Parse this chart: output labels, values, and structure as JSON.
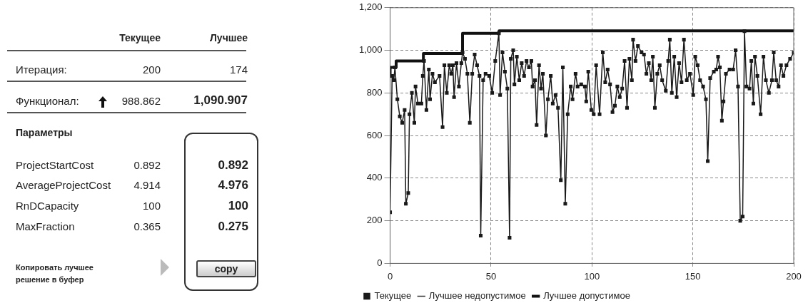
{
  "chart_data": [
    {
      "type": "other",
      "annotations": [
        "Текущее",
        "Лучшее",
        "Итерация:",
        "200",
        "174",
        "Функционал:",
        "988.862",
        "1,090.907",
        "Параметры",
        "ProjectStartCost",
        "0.892",
        "0.892",
        "AverageProjectCost",
        "4.914",
        "4.976",
        "RnDCapacity",
        "100",
        "100",
        "MaxFraction",
        "0.365",
        "0.275",
        "Копировать лучшее решение в буфер",
        "copy"
      ]
    },
    {
      "type": "line",
      "xlim": [
        0,
        200
      ],
      "xticks": [
        0,
        50,
        100,
        150,
        200
      ],
      "ylim": [
        0,
        1200
      ],
      "yticks": [
        0,
        200,
        400,
        600,
        800,
        {
          "value": 1000,
          "label": "1,000"
        },
        {
          "value": 1200,
          "label": "1,200"
        }
      ],
      "grid": true,
      "legend": "bottom",
      "series": [
        {
          "name": "Текущее",
          "type": "line",
          "color": "#1a1a1a",
          "marker": "square",
          "x": [
            0,
            1,
            1.8,
            2.4,
            3.6,
            4.8,
            6,
            7.2,
            7.8,
            9,
            9.6,
            10.8,
            12,
            12.6,
            13.8,
            15.5,
            16.2,
            16.8,
            18,
            19.2,
            19.8,
            21,
            22.2,
            24.5,
            26,
            26.9,
            28.1,
            29.3,
            30.3,
            31.1,
            31.7,
            32.9,
            34.1,
            35.3,
            35.9,
            37.1,
            38.3,
            39.5,
            40.7,
            41.9,
            43.1,
            44.3,
            44.9,
            46.1,
            47.3,
            49.1,
            50.6,
            52.1,
            53.9,
            54.5,
            55.7,
            56.9,
            58.1,
            59.2,
            59.8,
            61,
            61.6,
            62.8,
            64,
            65.2,
            66.4,
            67.6,
            68.8,
            70,
            70.6,
            71.8,
            72.6,
            73.8,
            74.8,
            75.7,
            77.2,
            78.2,
            79.6,
            80.6,
            82,
            83.2,
            84.6,
            85.6,
            86.8,
            88,
            89.5,
            90.4,
            91.9,
            92.9,
            94.7,
            96.5,
            97.2,
            98.2,
            99.7,
            100.9,
            102.1,
            103.8,
            105.4,
            106.6,
            107.8,
            109,
            110.2,
            111.4,
            112.6,
            113.8,
            115,
            116.2,
            117.4,
            118.6,
            119.8,
            120.4,
            121.6,
            122.8,
            124.6,
            125.8,
            127,
            128.2,
            129.4,
            130.2,
            131.2,
            132.4,
            133.6,
            134.8,
            136.6,
            137.8,
            138.6,
            139.6,
            140.8,
            142,
            143.2,
            144.4,
            145.6,
            147,
            148.6,
            150.2,
            151.2,
            152.4,
            153.6,
            155.1,
            156.5,
            157.4,
            158.6,
            160.4,
            161.6,
            162.5,
            163.4,
            164.4,
            165.2,
            166.4,
            168.2,
            170,
            171.2,
            172.4,
            173.5,
            174.7,
            175.6,
            176.6,
            178.1,
            179,
            180,
            180.8,
            182,
            183.6,
            185,
            186.2,
            187.7,
            189.2,
            190.1,
            191.3,
            192.5,
            193.7,
            194.9,
            196.4,
            198.2,
            200
          ],
          "values": [
            240,
            880,
            860,
            920,
            770,
            690,
            660,
            720,
            280,
            330,
            700,
            800,
            660,
            830,
            750,
            750,
            880,
            950,
            720,
            910,
            770,
            890,
            850,
            880,
            640,
            930,
            800,
            930,
            890,
            930,
            780,
            940,
            830,
            940,
            990,
            960,
            890,
            660,
            890,
            980,
            930,
            880,
            130,
            860,
            890,
            880,
            800,
            950,
            1080,
            790,
            990,
            900,
            820,
            120,
            960,
            1000,
            840,
            970,
            860,
            940,
            880,
            950,
            920,
            950,
            830,
            860,
            650,
            930,
            820,
            890,
            600,
            770,
            880,
            750,
            790,
            730,
            390,
            920,
            280,
            700,
            830,
            770,
            890,
            830,
            840,
            830,
            760,
            900,
            720,
            700,
            930,
            700,
            990,
            850,
            910,
            840,
            710,
            740,
            830,
            780,
            820,
            950,
            730,
            960,
            860,
            1050,
            950,
            1020,
            990,
            980,
            890,
            940,
            860,
            970,
            730,
            890,
            930,
            860,
            810,
            950,
            1050,
            800,
            970,
            780,
            940,
            850,
            1050,
            860,
            890,
            790,
            970,
            930,
            860,
            830,
            770,
            480,
            870,
            900,
            910,
            970,
            920,
            670,
            760,
            890,
            910,
            910,
            1000,
            830,
            200,
            220,
            1090,
            830,
            820,
            950,
            750,
            970,
            880,
            700,
            970,
            860,
            800,
            860,
            990,
            860,
            830,
            930,
            880,
            930,
            960,
            989
          ]
        },
        {
          "name": "Лучшее недопустимое",
          "type": "line",
          "color": "#333333",
          "marker": "none"
        },
        {
          "name": "Лучшее допустимое",
          "type": "step",
          "color": "#111111",
          "marker": "none",
          "x": [
            0,
            3,
            16.5,
            35.9,
            54,
            175,
            200
          ],
          "values": [
            880,
            920,
            950,
            985,
            1080,
            1091,
            1091
          ]
        }
      ]
    }
  ]
}
